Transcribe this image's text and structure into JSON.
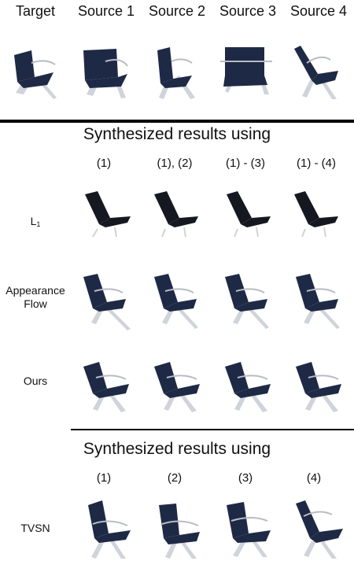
{
  "top_headers": [
    "Target",
    "Source 1",
    "Source 2",
    "Source 3",
    "Source 4"
  ],
  "section1": {
    "title": "Synthesized results using",
    "columns": [
      "(1)",
      "(1), (2)",
      "(1) - (3)",
      "(1) - (4)"
    ],
    "rows": {
      "l1": {
        "label": "L",
        "sub": "1"
      },
      "appearance_flow": {
        "line1": "Appearance",
        "line2": "Flow"
      },
      "ours": {
        "label": "Ours"
      }
    }
  },
  "section2": {
    "title": "Synthesized results using",
    "columns": [
      "(1)",
      "(2)",
      "(3)",
      "(4)"
    ],
    "rows": {
      "tvsn": {
        "label": "TVSN"
      }
    }
  },
  "colors": {
    "seat": "#1e2a45",
    "seat_dark": "#151821",
    "frame": "#b8bcc4",
    "divider": "#000000"
  }
}
